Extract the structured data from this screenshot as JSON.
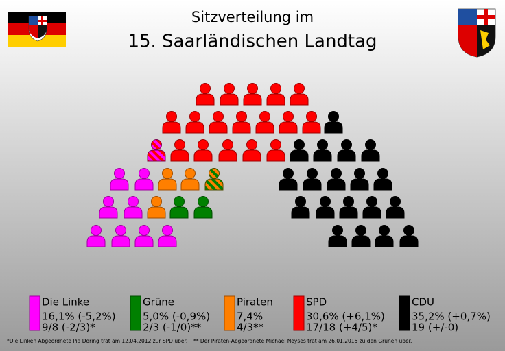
{
  "header": {
    "title_line1": "Sitzverteilung im",
    "title_line2": "15. Saarländischen Landtag"
  },
  "legend": [
    {
      "name": "Die Linke",
      "line1": "16,1% (-5,2%)",
      "line2": "9/8 (-2/3)*"
    },
    {
      "name": "Grüne",
      "line1": "5,0% (-0,9%)",
      "line2": "2/3 (-1/0)**"
    },
    {
      "name": "Piraten",
      "line1": "7,4%",
      "line2": "4/3**"
    },
    {
      "name": "SPD",
      "line1": "30,6% (+6,1%)",
      "line2": "17/18 (+4/5)*"
    },
    {
      "name": "CDU",
      "line1": "35,2% (+0,7%)",
      "line2": "19 (+/-0)"
    }
  ],
  "footnotes": [
    "*Die Linken Abgeordnete Pia Döring trat am 12.04.2012 zur SPD über.",
    "** Der Piraten-Abgeordnete Michael Neyses trat am 26.01.2015 zu den Grünen über."
  ]
}
